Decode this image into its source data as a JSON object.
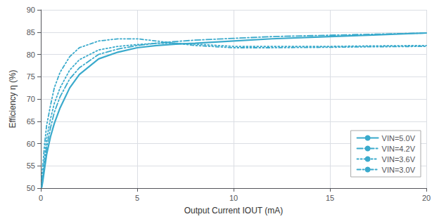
{
  "chart_data": {
    "type": "line",
    "xlabel": "Output Current IOUT (mA)",
    "ylabel": "Efficiency η (%)",
    "x": [
      0.05,
      0.1,
      0.2,
      0.3,
      0.5,
      0.7,
      1.0,
      1.5,
      2.0,
      3.0,
      4.0,
      5.0,
      6.0,
      7.0,
      8.0,
      10.0,
      12.0,
      15.0,
      17.0,
      20.0
    ],
    "xlim": [
      0,
      20
    ],
    "ylim": [
      50,
      90
    ],
    "xticks": [
      0,
      5,
      10,
      15,
      20
    ],
    "yticks": [
      50,
      55,
      60,
      65,
      70,
      75,
      80,
      85,
      90
    ],
    "color": "#3AAACC",
    "grid": true,
    "legend": "lower right",
    "series": [
      {
        "name": "VIN=5.0V",
        "line_style": "solid",
        "values": [
          50.2,
          51.5,
          54.5,
          57.5,
          61.5,
          64.5,
          68.0,
          72.5,
          75.5,
          79.0,
          80.5,
          81.5,
          82.0,
          82.3,
          82.5,
          83.0,
          83.5,
          84.0,
          84.3,
          84.8
        ]
      },
      {
        "name": "VIN=4.2V",
        "line_style": "dashdot",
        "values": [
          50.5,
          52.0,
          55.5,
          59.0,
          63.5,
          67.0,
          70.5,
          74.5,
          77.0,
          80.0,
          81.2,
          82.0,
          82.5,
          82.9,
          83.2,
          83.6,
          84.0,
          84.3,
          84.5,
          84.8
        ]
      },
      {
        "name": "VIN=3.6V",
        "line_style": "dotted",
        "values": [
          51.0,
          53.0,
          57.0,
          61.0,
          65.5,
          69.0,
          72.5,
          76.5,
          78.8,
          81.0,
          81.8,
          82.2,
          82.5,
          82.5,
          82.3,
          81.8,
          81.8,
          81.8,
          81.9,
          82.0
        ]
      },
      {
        "name": "VIN=3.0V",
        "line_style": "loosely_dotdash",
        "values": [
          52.0,
          55.0,
          60.0,
          64.0,
          68.5,
          72.5,
          76.0,
          79.5,
          81.5,
          83.0,
          83.5,
          83.5,
          83.0,
          82.5,
          82.0,
          81.5,
          81.5,
          81.6,
          81.7,
          81.8
        ]
      }
    ]
  }
}
